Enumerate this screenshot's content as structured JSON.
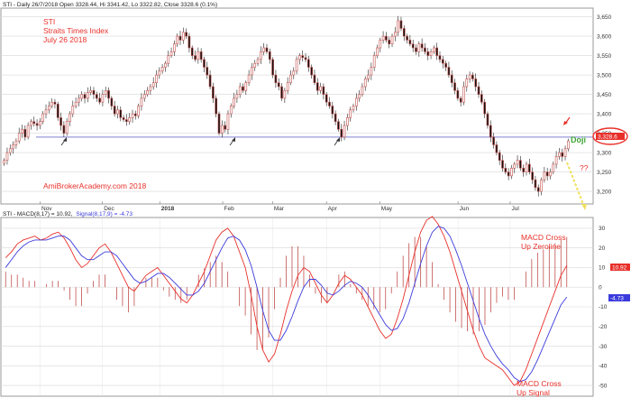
{
  "header": {
    "price_info": "STI - Daily 26/7/2018 Open 3328.44, Hi 3341.42, Lo 3322.82, Close 3328.6 (0.1%)",
    "macd_label": "STI - MACD(8,17) = 10.92,",
    "signal_label": "Signal(8,17,9) = -4.73"
  },
  "annotations": {
    "title_line1": "STI",
    "title_line2": "Straits Times Index",
    "title_line3": "July 26 2018",
    "watermark": "AmiBrokerAcademy.com  2018",
    "doji": "Doji",
    "question": "??",
    "macd_zero_line1": "MACD Cross",
    "macd_zero_line2": "Up Zeroline",
    "macd_signal_line1": "MACD Cross",
    "macd_signal_line2": "Up Signal",
    "price_marker": "3,328.6",
    "macd_marker": "10.92",
    "signal_marker": "-4.73"
  },
  "colors": {
    "candle_up": "#ffffff",
    "candle_down": "#111111",
    "candle_outline": "#c0504d",
    "support_line": "#9999dd",
    "macd": "#e8302a",
    "signal": "#3b3bdc",
    "histogram": "#c0504d",
    "annotation": "#e8302a",
    "doji": "#3fa535",
    "arrow": "#333333",
    "dashed_arrow": "#f0e060"
  },
  "chart_data": [
    {
      "type": "candlestick",
      "title": "STI",
      "x_labels": [
        "Nov",
        "Dec",
        "2018",
        "Feb",
        "Mar",
        "Apr",
        "May",
        "Jun",
        "Jul"
      ],
      "y_ticks": [
        3200,
        3250,
        3300,
        3350,
        3400,
        3450,
        3500,
        3550,
        3600,
        3650
      ],
      "ylim": [
        3170,
        3670
      ],
      "support_level": 3340,
      "last_close": 3328.6,
      "grid": true,
      "closes": [
        3280,
        3300,
        3310,
        3320,
        3330,
        3350,
        3360,
        3340,
        3370,
        3380,
        3375,
        3370,
        3380,
        3400,
        3410,
        3420,
        3430,
        3425,
        3390,
        3370,
        3350,
        3380,
        3400,
        3420,
        3430,
        3440,
        3450,
        3440,
        3455,
        3460,
        3450,
        3440,
        3430,
        3450,
        3460,
        3440,
        3420,
        3400,
        3410,
        3390,
        3385,
        3380,
        3390,
        3400,
        3395,
        3420,
        3440,
        3450,
        3460,
        3470,
        3480,
        3500,
        3510,
        3520,
        3530,
        3550,
        3560,
        3580,
        3600,
        3590,
        3610,
        3600,
        3570,
        3550,
        3540,
        3560,
        3540,
        3520,
        3500,
        3470,
        3440,
        3400,
        3350,
        3370,
        3360,
        3400,
        3420,
        3440,
        3450,
        3470,
        3460,
        3480,
        3500,
        3520,
        3530,
        3540,
        3560,
        3570,
        3560,
        3540,
        3500,
        3480,
        3470,
        3440,
        3460,
        3480,
        3500,
        3510,
        3540,
        3550,
        3545,
        3540,
        3520,
        3500,
        3480,
        3460,
        3470,
        3450,
        3430,
        3420,
        3400,
        3380,
        3360,
        3340,
        3370,
        3390,
        3410,
        3420,
        3440,
        3450,
        3470,
        3490,
        3500,
        3520,
        3550,
        3570,
        3590,
        3600,
        3590,
        3580,
        3600,
        3610,
        3640,
        3620,
        3600,
        3590,
        3580,
        3570,
        3560,
        3580,
        3570,
        3560,
        3550,
        3560,
        3570,
        3550,
        3540,
        3530,
        3520,
        3500,
        3480,
        3460,
        3440,
        3430,
        3470,
        3490,
        3500,
        3490,
        3470,
        3450,
        3430,
        3400,
        3370,
        3340,
        3320,
        3300,
        3280,
        3260,
        3250,
        3240,
        3260,
        3270,
        3280,
        3260,
        3250,
        3270,
        3250,
        3230,
        3210,
        3200,
        3230,
        3250,
        3240,
        3250,
        3270,
        3290,
        3300,
        3290,
        3310,
        3330
      ]
    },
    {
      "type": "line",
      "title": "MACD(8,17) / Signal(8,17,9)",
      "x_labels": [
        "Nov",
        "Dec",
        "2018",
        "Feb",
        "Mar",
        "Apr",
        "May",
        "Jun",
        "Jul"
      ],
      "y_ticks": [
        30,
        20,
        10,
        0,
        -10,
        -20,
        -30,
        -40,
        -50
      ],
      "ylim": [
        -55,
        35
      ],
      "grid": true,
      "series": [
        {
          "name": "MACD(8,17)",
          "values": [
            15,
            18,
            22,
            24,
            25,
            26,
            24,
            25,
            27,
            28,
            25,
            20,
            14,
            10,
            12,
            16,
            20,
            22,
            18,
            12,
            6,
            0,
            -2,
            2,
            6,
            8,
            10,
            6,
            2,
            -2,
            -6,
            -8,
            -4,
            2,
            8,
            16,
            24,
            28,
            30,
            26,
            18,
            10,
            -4,
            -20,
            -32,
            -38,
            -34,
            -24,
            -12,
            -2,
            6,
            10,
            8,
            2,
            -4,
            -8,
            -4,
            2,
            6,
            4,
            0,
            -4,
            -10,
            -16,
            -22,
            -26,
            -24,
            -16,
            -6,
            6,
            18,
            28,
            34,
            36,
            32,
            26,
            18,
            8,
            -2,
            -12,
            -22,
            -30,
            -36,
            -38,
            -40,
            -42,
            -46,
            -50,
            -48,
            -42,
            -34,
            -26,
            -18,
            -10,
            -2,
            6,
            11
          ]
        },
        {
          "name": "Signal(8,17,9)",
          "values": [
            10,
            14,
            18,
            21,
            23,
            24,
            24,
            24,
            25,
            26,
            26,
            24,
            20,
            16,
            14,
            14,
            16,
            18,
            18,
            16,
            12,
            8,
            4,
            2,
            3,
            5,
            7,
            7,
            5,
            2,
            -1,
            -4,
            -4,
            -2,
            2,
            8,
            14,
            20,
            25,
            26,
            24,
            19,
            11,
            0,
            -12,
            -22,
            -27,
            -27,
            -22,
            -15,
            -7,
            0,
            4,
            4,
            1,
            -3,
            -4,
            -2,
            1,
            3,
            2,
            0,
            -4,
            -9,
            -14,
            -19,
            -22,
            -21,
            -16,
            -8,
            2,
            12,
            21,
            28,
            31,
            30,
            26,
            19,
            11,
            2,
            -7,
            -16,
            -24,
            -30,
            -35,
            -39,
            -42,
            -46,
            -48,
            -47,
            -43,
            -37,
            -30,
            -23,
            -16,
            -9,
            -5
          ]
        }
      ]
    }
  ]
}
